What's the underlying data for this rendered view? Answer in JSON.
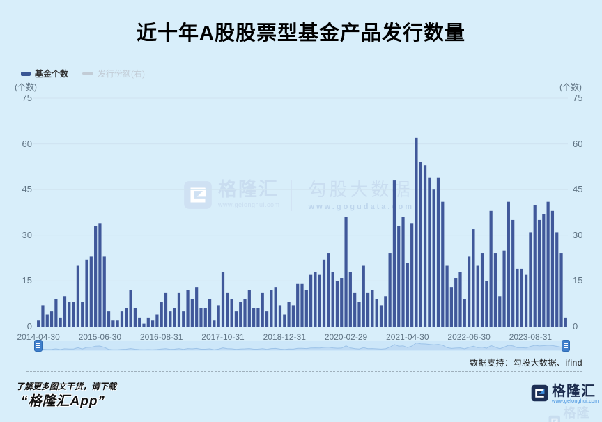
{
  "title": "近十年A股股票型基金产品发行数量",
  "legend": {
    "items": [
      {
        "label": "基金个数",
        "active": true,
        "marker_color": "#3a5795"
      },
      {
        "label": "发行份额(右)",
        "active": false,
        "marker_color": "#c2ccd6"
      }
    ]
  },
  "axes": {
    "left_unit": "(个数)",
    "right_unit": "(个数)",
    "y_ticks": [
      75,
      60,
      45,
      30,
      15,
      0
    ]
  },
  "chart_data": {
    "type": "bar",
    "title": "近十年A股股票型基金产品发行数量",
    "xlabel": "",
    "ylabel": "(个数)",
    "ylim": [
      0,
      75
    ],
    "grid": true,
    "legend_position": "top-left",
    "x_start_month": "2014-04",
    "x_frequency": "monthly",
    "x_tick_labels": [
      "2014-04-30",
      "2015-06-30",
      "2016-08-31",
      "2017-10-31",
      "2018-12-31",
      "2020-02-29",
      "2021-04-30",
      "2022-06-30",
      "2023-08-31"
    ],
    "x_tick_indices": [
      0,
      14,
      28,
      42,
      56,
      70,
      84,
      98,
      112
    ],
    "series": [
      {
        "name": "基金个数",
        "color": "#40589a",
        "values": [
          2,
          7,
          4,
          5,
          9,
          3,
          10,
          8,
          8,
          20,
          8,
          22,
          23,
          33,
          34,
          23,
          5,
          2,
          2,
          5,
          6,
          12,
          6,
          3,
          1,
          3,
          2,
          4,
          8,
          11,
          5,
          6,
          11,
          5,
          12,
          9,
          13,
          6,
          6,
          9,
          2,
          7,
          18,
          11,
          9,
          5,
          8,
          9,
          12,
          6,
          6,
          11,
          5,
          12,
          13,
          7,
          4,
          8,
          7,
          14,
          14,
          12,
          17,
          18,
          17,
          22,
          24,
          18,
          15,
          16,
          36,
          18,
          11,
          8,
          20,
          11,
          12,
          9,
          7,
          10,
          24,
          48,
          33,
          36,
          21,
          34,
          62,
          54,
          53,
          49,
          45,
          49,
          41,
          20,
          13,
          16,
          18,
          9,
          23,
          32,
          20,
          24,
          15,
          38,
          24,
          10,
          25,
          41,
          35,
          19,
          19,
          17,
          31,
          40,
          35,
          37,
          41,
          38,
          31,
          24,
          3
        ]
      }
    ],
    "inactive_series": [
      {
        "name": "发行份额(右)",
        "axis": "right"
      }
    ]
  },
  "slider": {
    "type": "datazoom",
    "handle_count": 2
  },
  "watermark": {
    "brand": "格隆汇",
    "brand_url": "www.gelonghui.com",
    "partner": "勾股大数据",
    "partner_url": "www.gogudata.com"
  },
  "footer": {
    "data_source": "数据支持：勾股大数据、ifind",
    "promo_line1": "了解更多图文干货，请下载",
    "promo_line2": "“格隆汇App”",
    "logo_text": "格隆汇",
    "logo_url": "www.gelonghui.com"
  },
  "colors": {
    "background": "#d8eefa",
    "bar": "#40589a",
    "grid": "#cfe3f0",
    "axis_text": "#5f7383",
    "title": "#000000",
    "legend_active_text": "#333333",
    "legend_inactive_text": "#c2ccd6",
    "slider_track": "#cde6f8",
    "slider_area": "#bcd8f2",
    "slider_line": "#9dc3e8",
    "slider_handle": "#3f7ecb",
    "watermark_text": "#c9ddf0",
    "logo_navy": "#1d2f55",
    "logo_blue": "#3f8fdf"
  }
}
